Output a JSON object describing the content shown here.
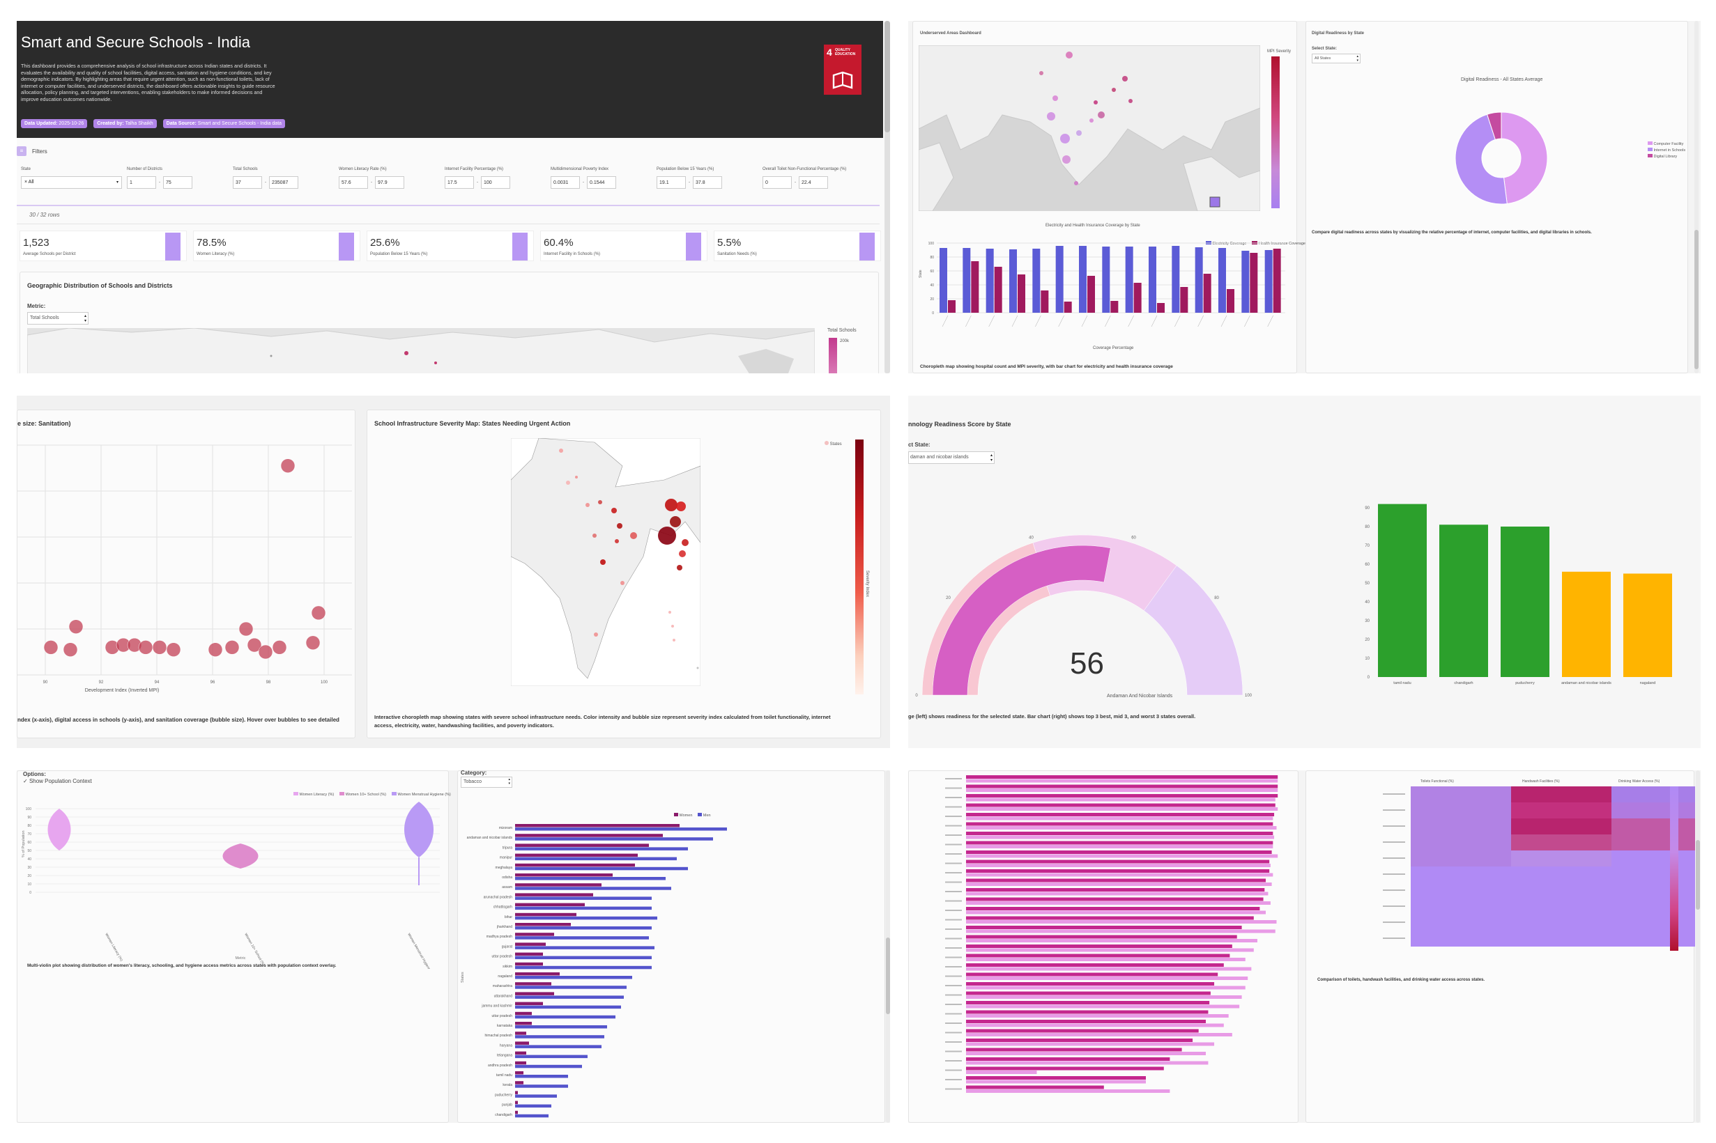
{
  "header": {
    "title": "Smart and Secure Schools - India",
    "description": "This dashboard provides a comprehensive analysis of school infrastructure across Indian states and districts. It evaluates the availability and quality of school facilities, digital access, sanitation and hygiene conditions, and key demographic indicators. By highlighting areas that require urgent attention, such as non-functional toilets, lack of internet or computer facilities, and underserved districts, the dashboard offers actionable insights to guide resource allocation, policy planning, and targeted interventions, enabling stakeholders to make informed decisions and improve education outcomes nationwide.",
    "badges": [
      {
        "label": "Data Updated:",
        "value": "2025-10-26"
      },
      {
        "label": "Created by:",
        "value": "Talha Shaikh"
      },
      {
        "label": "Data Source:",
        "value": "Smart and Secure Schools - India data"
      }
    ],
    "sdg_number": "4",
    "sdg_text": "QUALITY EDUCATION",
    "sdg_color": "#c5192d"
  },
  "filters": {
    "toggle_label": "Filters",
    "items": [
      {
        "label": "State",
        "min": "All",
        "max": ""
      },
      {
        "label": "Number of Districts",
        "min": "1",
        "max": "75"
      },
      {
        "label": "Total Schools",
        "min": "37",
        "max": "235087"
      },
      {
        "label": "Women Literacy Rate (%)",
        "min": "57.6",
        "max": "97.9"
      },
      {
        "label": "Internet Facility Percentage (%)",
        "min": "17.5",
        "max": "100"
      },
      {
        "label": "Multidimensional Poverty Index",
        "min": "0.0031",
        "max": "0.1544"
      },
      {
        "label": "Population Below 15 Years (%)",
        "min": "19.1",
        "max": "37.8"
      },
      {
        "label": "Overall Toilet Non-Functional Percentage (%)",
        "min": "0",
        "max": "22.4"
      }
    ],
    "rows": "30 / 32 rows"
  },
  "kpis": [
    {
      "value": "1,523",
      "label": "Average Schools per District",
      "fill": 0.9
    },
    {
      "value": "78.5%",
      "label": "Women Literacy (%)",
      "fill": 0.9
    },
    {
      "value": "25.6%",
      "label": "Population Below 15 Years (%)",
      "fill": 0.9
    },
    {
      "value": "60.4%",
      "label": "Internet Facility in Schools (%)",
      "fill": 0.9
    },
    {
      "value": "5.5%",
      "label": "Sanitation Needs (%)",
      "fill": 0.9
    }
  ],
  "geo": {
    "title": "Geographic Distribution of Schools and Districts",
    "metric_label": "Metric:",
    "metric_value": "Total Schools",
    "legend_title": "Total Schools",
    "legend_tick": "200k"
  },
  "underserved": {
    "title": "Underserved Areas Dashboard",
    "legend_title": "MPI Severity",
    "bar_title": "Electricity and Health Insurance Coverage by State",
    "legend": [
      "Electricity Coverage",
      "Health Insurance Coverage"
    ],
    "xlabel": "Coverage Percentage",
    "ylabel": "State",
    "caption": "Choropleth map showing hospital count and MPI severity, with bar chart for electricity and health insurance coverage"
  },
  "digital": {
    "title": "Digital Readiness by State",
    "select_label": "Select State:",
    "select_value": "All States",
    "chart_title": "Digital Readiness - All States Average",
    "legend": [
      "Computer Facility",
      "Internet in Schools",
      "Digital Library"
    ],
    "caption": "Compare digital readiness across states by visualizing the relative percentage of internet, computer facilities, and digital libraries in schools."
  },
  "scatter": {
    "title": "e size: Sanitation)",
    "xlabel": "Development Index (Inverted MPI)",
    "caption": "ndex (x-axis), digital access in schools (y-axis), and sanitation coverage (bubble size). Hover over bubbles to see detailed"
  },
  "severity": {
    "title": "School Infrastructure Severity Map: States Needing Urgent Action",
    "legend_label": "States",
    "colorbar_title": "Severity Index",
    "caption1": "Interactive choropleth map showing states with severe school infrastructure needs. Color intensity and bubble size represent severity index calculated from toilet functionality, internet",
    "caption2": "access, electricity, water, handwashing facilities, and poverty indicators."
  },
  "tech": {
    "title": "nnology Readiness Score by State",
    "select_label": "ct State:",
    "select_value": "daman and nicobar islands",
    "gauge_value": "56",
    "gauge_label": "Andaman And Nicobar Islands",
    "caption": "ge (left) shows readiness for the selected state. Bar chart (right) shows top 3 best, mid 3, and worst 3 states overall."
  },
  "violin": {
    "options_label": "Options:",
    "toggle_label": "Show Population Context",
    "legend": [
      "Women Literacy (%)",
      "Women 10+ School (%)",
      "Women Menstrual Hygiene (%)"
    ],
    "ylabel": "% of Population",
    "xlabel": "Metric",
    "caption": "Multi-violin plot showing distribution of women's literacy, schooling, and hygiene access metrics across states with population context overlay."
  },
  "tobacco": {
    "category_label": "Category:",
    "category_value": "Tobacco",
    "legend": [
      "Women",
      "Men"
    ],
    "ylabel": "States"
  },
  "heatmap": {
    "columns": [
      "Toilets Functional (%)",
      "Handwash Facilities (%)",
      "Drinking Water Access (%)"
    ],
    "caption": "Comparison of toilets, handwash facilities, and drinking water access across states."
  },
  "chart_data": [
    {
      "type": "bar",
      "title": "Electricity and Health Insurance Coverage by State",
      "xlabel": "Coverage Percentage",
      "ylabel": "State",
      "ylim": [
        0,
        100
      ],
      "series": [
        {
          "name": "Electricity Coverage",
          "values": [
            93,
            93,
            92,
            91,
            92,
            96,
            96,
            95,
            95,
            95,
            96,
            94,
            93,
            89,
            90
          ]
        },
        {
          "name": "Health Insurance Coverage",
          "values": [
            18,
            74,
            66,
            55,
            32,
            16,
            53,
            17,
            43,
            14,
            37,
            56,
            34,
            86,
            92
          ]
        }
      ]
    },
    {
      "type": "pie",
      "title": "Digital Readiness - All States Average",
      "categories": [
        "Computer Facility",
        "Internet in Schools",
        "Digital Library"
      ],
      "values": [
        48,
        47,
        5
      ]
    },
    {
      "type": "scatter",
      "xlabel": "Development Index (Inverted MPI)",
      "x_ticks": [
        "90",
        "92",
        "94",
        "96",
        "98",
        "100"
      ],
      "xlim": [
        89,
        101
      ],
      "ylim": [
        0,
        100
      ],
      "points": [
        {
          "x": 90.2,
          "y": 12
        },
        {
          "x": 91.1,
          "y": 21
        },
        {
          "x": 90.9,
          "y": 11
        },
        {
          "x": 92.4,
          "y": 12
        },
        {
          "x": 92.8,
          "y": 13
        },
        {
          "x": 93.2,
          "y": 13
        },
        {
          "x": 93.6,
          "y": 12
        },
        {
          "x": 94.1,
          "y": 12
        },
        {
          "x": 94.6,
          "y": 11
        },
        {
          "x": 96.1,
          "y": 11
        },
        {
          "x": 96.7,
          "y": 12
        },
        {
          "x": 97.2,
          "y": 20
        },
        {
          "x": 97.5,
          "y": 13
        },
        {
          "x": 97.9,
          "y": 10
        },
        {
          "x": 98.4,
          "y": 12
        },
        {
          "x": 98.7,
          "y": 91
        },
        {
          "x": 99.6,
          "y": 14
        },
        {
          "x": 99.8,
          "y": 27
        }
      ]
    },
    {
      "type": "bar",
      "title": "Technology Readiness Score by State",
      "categories": [
        "tamil nadu",
        "chandigarh",
        "puducherry",
        "andaman and nicobar islands",
        "nagaland"
      ],
      "values": [
        92,
        81,
        80,
        56,
        55
      ],
      "y_ticks": [
        "0",
        "10",
        "20",
        "30",
        "40",
        "50",
        "60",
        "70",
        "80",
        "90"
      ],
      "ylim": [
        0,
        100
      ]
    },
    {
      "type": "bar",
      "title": "Tobacco",
      "legend": [
        "Women",
        "Men"
      ],
      "categories": [
        "mizoram",
        "andaman and nicobar islands",
        "tripura",
        "manipur",
        "meghalaya",
        "odisha",
        "assam",
        "arunachal pradesh",
        "chhattisgarh",
        "bihar",
        "jharkhand",
        "madhya pradesh",
        "gujarat",
        "uttar pradesh",
        "sikkim",
        "nagaland",
        "maharashtra",
        "uttarakhand",
        "jammu and kashmir",
        "uttar pradesh",
        "karnataka",
        "himachal pradesh",
        "haryana",
        "telangana",
        "andhra pradesh",
        "tamil nadu",
        "kerala",
        "puducherry",
        "punjab",
        "chandigarh"
      ],
      "series": [
        {
          "name": "Women",
          "values": [
            59,
            53,
            48,
            44,
            43,
            35,
            31,
            28,
            25,
            22,
            20,
            14,
            11,
            10,
            10,
            16,
            13,
            14,
            10,
            6,
            6,
            4,
            5,
            4,
            4,
            3,
            3,
            1,
            1,
            1
          ]
        },
        {
          "name": "Men",
          "values": [
            76,
            71,
            62,
            58,
            62,
            54,
            56,
            49,
            49,
            51,
            49,
            48,
            50,
            49,
            49,
            42,
            40,
            39,
            38,
            36,
            33,
            32,
            31,
            26,
            24,
            19,
            19,
            15,
            13,
            12
          ]
        }
      ]
    }
  ]
}
